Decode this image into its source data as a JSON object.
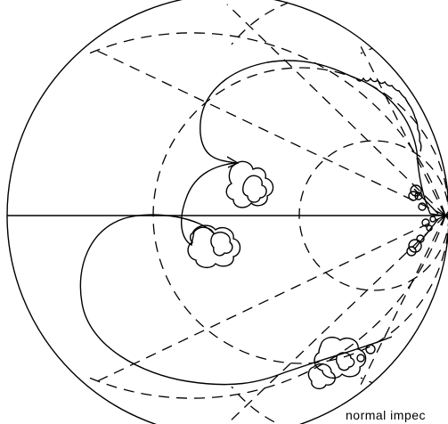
{
  "diagram": {
    "caption": "normal impec",
    "line_color": "#000000",
    "background": "#ffffff"
  }
}
